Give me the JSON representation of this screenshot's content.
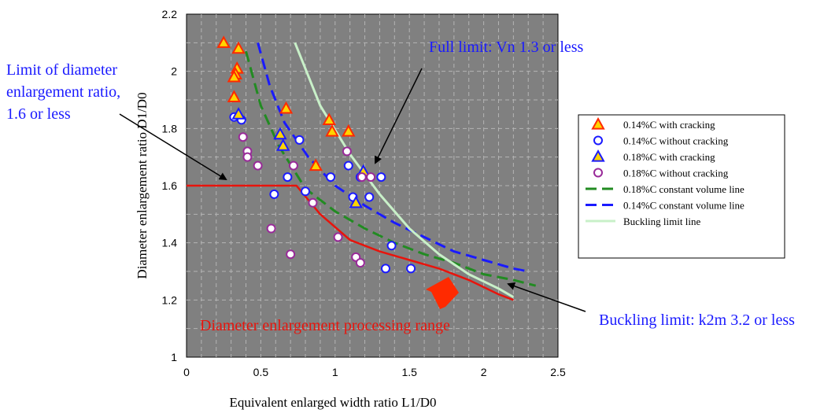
{
  "chart_data": {
    "type": "scatter",
    "xlabel": "Equivalent enlarged width ratio L1/D0",
    "ylabel": "Diameter enlargement ratio D1/D0",
    "xlim": [
      0,
      2.5
    ],
    "ylim": [
      1,
      2.2
    ],
    "xticks": [
      "0",
      "0.5",
      "1",
      "1.5",
      "2",
      "2.5"
    ],
    "yticks": [
      "1",
      "1.2",
      "1.4",
      "1.6",
      "1.8",
      "2",
      "2.2"
    ],
    "grid": true,
    "legend_position": "right",
    "series": [
      {
        "name": "0.14%C with cracking",
        "marker": "triangle",
        "fill": "#ffd400",
        "stroke": "#ff2a00",
        "points": [
          [
            0.25,
            2.1
          ],
          [
            0.35,
            2.08
          ],
          [
            0.34,
            2.01
          ],
          [
            0.33,
            1.99
          ],
          [
            0.32,
            1.98
          ],
          [
            0.32,
            1.91
          ],
          [
            0.67,
            1.87
          ],
          [
            0.96,
            1.83
          ],
          [
            0.98,
            1.79
          ],
          [
            1.09,
            1.79
          ],
          [
            0.87,
            1.67
          ]
        ]
      },
      {
        "name": "0.14%C without cracking",
        "marker": "circle",
        "fill": "#ffffff",
        "stroke": "#1a1aff",
        "points": [
          [
            0.32,
            1.84
          ],
          [
            0.37,
            1.83
          ],
          [
            0.76,
            1.76
          ],
          [
            0.68,
            1.63
          ],
          [
            0.97,
            1.63
          ],
          [
            1.09,
            1.67
          ],
          [
            1.12,
            1.56
          ],
          [
            1.17,
            1.63
          ],
          [
            1.23,
            1.56
          ],
          [
            1.31,
            1.63
          ],
          [
            0.59,
            1.57
          ],
          [
            0.8,
            1.58
          ],
          [
            1.38,
            1.39
          ],
          [
            1.34,
            1.31
          ],
          [
            1.51,
            1.31
          ]
        ]
      },
      {
        "name": "0.18%C with cracking",
        "marker": "triangle",
        "fill": "#ffd400",
        "stroke": "#1a1aff",
        "points": [
          [
            0.35,
            1.85
          ],
          [
            0.63,
            1.78
          ],
          [
            0.65,
            1.74
          ],
          [
            1.14,
            1.54
          ],
          [
            1.19,
            1.65
          ]
        ]
      },
      {
        "name": "0.18%C without cracking",
        "marker": "circle",
        "fill": "#ffffff",
        "stroke": "#992a99",
        "points": [
          [
            0.38,
            1.77
          ],
          [
            0.41,
            1.72
          ],
          [
            0.41,
            1.7
          ],
          [
            0.48,
            1.67
          ],
          [
            0.72,
            1.67
          ],
          [
            1.08,
            1.72
          ],
          [
            1.18,
            1.63
          ],
          [
            1.24,
            1.63
          ],
          [
            0.85,
            1.54
          ],
          [
            0.57,
            1.45
          ],
          [
            0.7,
            1.36
          ],
          [
            1.02,
            1.42
          ],
          [
            1.14,
            1.35
          ],
          [
            1.17,
            1.33
          ]
        ]
      }
    ],
    "lines": [
      {
        "name": "0.18%C constant volume line",
        "color": "#228b22",
        "dash": "14,7",
        "width": 3,
        "points": [
          [
            0.4,
            2.07
          ],
          [
            0.5,
            1.88
          ],
          [
            0.62,
            1.74
          ],
          [
            0.8,
            1.59
          ],
          [
            1.0,
            1.51
          ],
          [
            1.2,
            1.45
          ],
          [
            1.4,
            1.4
          ],
          [
            1.6,
            1.36
          ],
          [
            1.8,
            1.33
          ],
          [
            2.0,
            1.29
          ],
          [
            2.2,
            1.27
          ],
          [
            2.35,
            1.25
          ]
        ]
      },
      {
        "name": "0.14%C constant volume line",
        "color": "#1a1aff",
        "dash": "14,7",
        "width": 3,
        "points": [
          [
            0.48,
            2.1
          ],
          [
            0.56,
            1.95
          ],
          [
            0.66,
            1.82
          ],
          [
            0.82,
            1.7
          ],
          [
            1.0,
            1.6
          ],
          [
            1.2,
            1.53
          ],
          [
            1.4,
            1.47
          ],
          [
            1.6,
            1.42
          ],
          [
            1.8,
            1.37
          ],
          [
            2.0,
            1.34
          ],
          [
            2.2,
            1.31
          ],
          [
            2.3,
            1.3
          ]
        ]
      },
      {
        "name": "Buckling limit line",
        "color": "#c8f0c8",
        "dash": "",
        "width": 3,
        "points": [
          [
            0.73,
            2.1
          ],
          [
            0.9,
            1.88
          ],
          [
            1.1,
            1.71
          ],
          [
            1.3,
            1.57
          ],
          [
            1.5,
            1.45
          ],
          [
            1.7,
            1.36
          ],
          [
            1.9,
            1.29
          ],
          [
            2.1,
            1.24
          ],
          [
            2.2,
            1.21
          ]
        ]
      },
      {
        "name": "Diameter enlargement processing range",
        "color": "#e8140c",
        "dash": "",
        "width": 2.5,
        "points": [
          [
            0,
            1.6
          ],
          [
            0.74,
            1.6
          ],
          [
            0.9,
            1.5
          ],
          [
            1.1,
            1.41
          ],
          [
            1.3,
            1.37
          ],
          [
            1.5,
            1.34
          ],
          [
            1.7,
            1.31
          ],
          [
            1.9,
            1.27
          ],
          [
            2.1,
            1.22
          ],
          [
            2.2,
            1.2
          ]
        ]
      }
    ],
    "annotations": {
      "diameter_limit": [
        "Limit of diameter",
        "enlargement ratio,",
        "1.6 or less"
      ],
      "full_limit": "Full limit: Vn 1.3 or less",
      "buckling_limit": "Buckling limit: k2m 3.2 or less",
      "processing_range": "Diameter enlargement processing range"
    }
  },
  "colors": {
    "plot_bg": "#808080",
    "grid": "#b4b4b4",
    "blue_text": "#1a1aff",
    "red": "#e8140c"
  }
}
